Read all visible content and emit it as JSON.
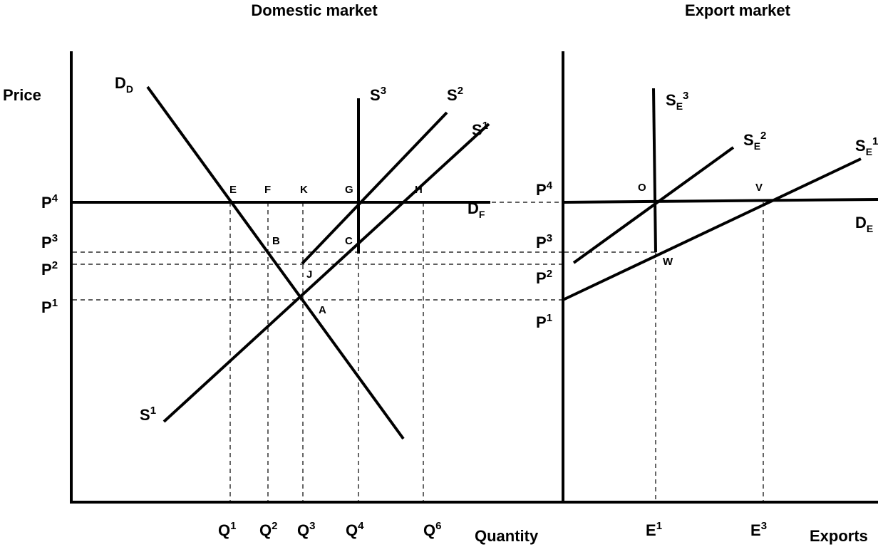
{
  "domestic": {
    "title": "Domestic market",
    "y_axis_label": "Price",
    "x_axis_label": "Quantity",
    "price_labels": [
      {
        "base": "P",
        "sup": "4"
      },
      {
        "base": "P",
        "sup": "3"
      },
      {
        "base": "P",
        "sup": "2"
      },
      {
        "base": "P",
        "sup": "1"
      }
    ],
    "quantity_labels": [
      {
        "base": "Q",
        "sup": "1"
      },
      {
        "base": "Q",
        "sup": "2"
      },
      {
        "base": "Q",
        "sup": "3"
      },
      {
        "base": "Q",
        "sup": "4"
      },
      {
        "base": "Q",
        "sup": "6"
      }
    ],
    "curves": {
      "dd": {
        "base": "D",
        "sub": "D"
      },
      "df": {
        "base": "D",
        "sub": "F"
      },
      "s1_top": {
        "base": "S",
        "sup": "1"
      },
      "s1_bottom": {
        "base": "S",
        "sup": "1"
      },
      "s2": {
        "base": "S",
        "sup": "2"
      },
      "s3": {
        "base": "S",
        "sup": "3"
      }
    },
    "points": [
      "E",
      "F",
      "K",
      "G",
      "H",
      "B",
      "C",
      "J",
      "A"
    ]
  },
  "export": {
    "title": "Export market",
    "x_axis_label": "Exports",
    "price_labels": [
      {
        "base": "P",
        "sup": "4"
      },
      {
        "base": "P",
        "sup": "3"
      },
      {
        "base": "P",
        "sup": "2"
      },
      {
        "base": "P",
        "sup": "1"
      }
    ],
    "export_labels": [
      {
        "base": "E",
        "sup": "1"
      },
      {
        "base": "E",
        "sup": "3"
      }
    ],
    "curves": {
      "se3": {
        "base": "S",
        "sub": "E",
        "sup": "3"
      },
      "se2": {
        "base": "S",
        "sub": "E",
        "sup": "2"
      },
      "se1": {
        "base": "S",
        "sub": "E",
        "sup": "1"
      },
      "de": {
        "base": "D",
        "sub": "E"
      }
    },
    "points": [
      "O",
      "V",
      "W"
    ]
  }
}
